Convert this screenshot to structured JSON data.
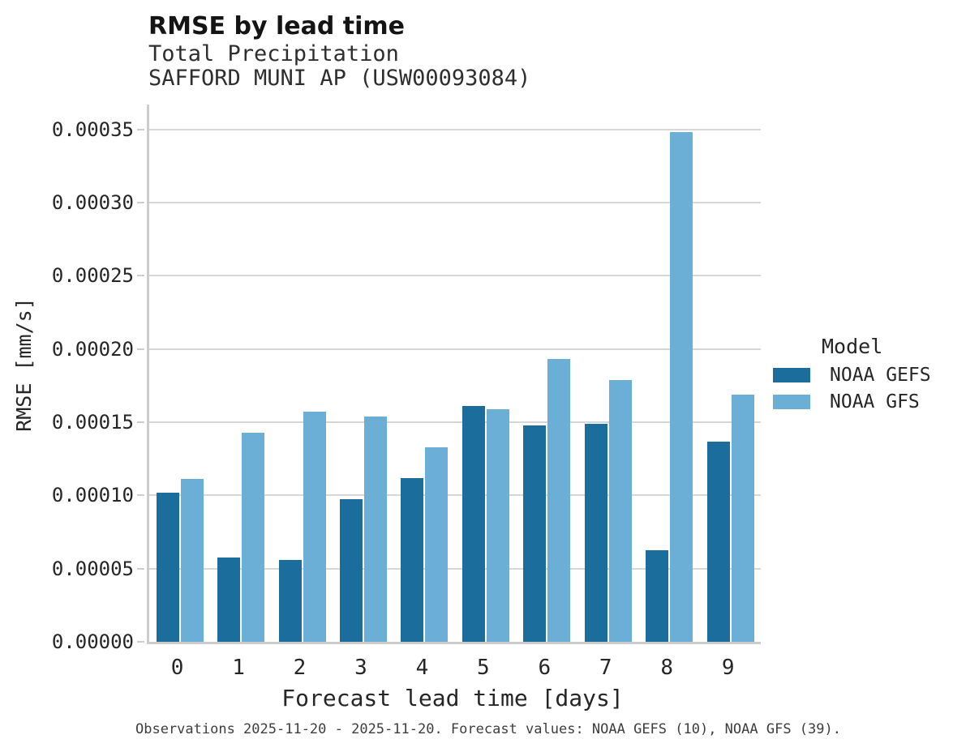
{
  "header": {
    "title": "RMSE by lead time",
    "subtitle_line1": "Total Precipitation",
    "subtitle_line2": "SAFFORD MUNI AP (USW00093084)"
  },
  "chart_data": {
    "type": "bar",
    "title": "RMSE by lead time",
    "subtitle": [
      "Total Precipitation",
      "SAFFORD MUNI AP (USW00093084)"
    ],
    "xlabel": "Forecast lead time [days]",
    "ylabel": "RMSE [mm/s]",
    "categories": [
      "0",
      "1",
      "2",
      "3",
      "4",
      "5",
      "6",
      "7",
      "8",
      "9"
    ],
    "series": [
      {
        "name": "NOAA GEFS",
        "color": "#1b6d9b",
        "values": [
          0.000102,
          5.75e-05,
          5.6e-05,
          9.75e-05,
          0.000112,
          0.000161,
          0.000148,
          0.000149,
          6.25e-05,
          0.000137
        ]
      },
      {
        "name": "NOAA GFS",
        "color": "#6bafd7",
        "values": [
          0.000111,
          0.000143,
          0.000157,
          0.000154,
          0.000133,
          0.000159,
          0.000193,
          0.000179,
          0.000348,
          0.000169
        ]
      }
    ],
    "ylim": [
      0,
      0.000367
    ],
    "yticks": [
      0,
      5e-05,
      0.0001,
      0.00015,
      0.0002,
      0.00025,
      0.0003,
      0.00035
    ],
    "ytick_labels": [
      "0.00000",
      "0.00005",
      "0.00010",
      "0.00015",
      "0.00020",
      "0.00025",
      "0.00030",
      "0.00035"
    ],
    "grid": "horizontal",
    "legend_title": "Model",
    "legend_position": "right"
  },
  "legend": {
    "title": "Model",
    "entries": [
      {
        "label": "NOAA GEFS",
        "color": "#1b6d9b"
      },
      {
        "label": "NOAA GFS",
        "color": "#6bafd7"
      }
    ]
  },
  "footer": {
    "caption": "Observations 2025-11-20 - 2025-11-20. Forecast values: NOAA GEFS (10), NOAA GFS (39)."
  }
}
